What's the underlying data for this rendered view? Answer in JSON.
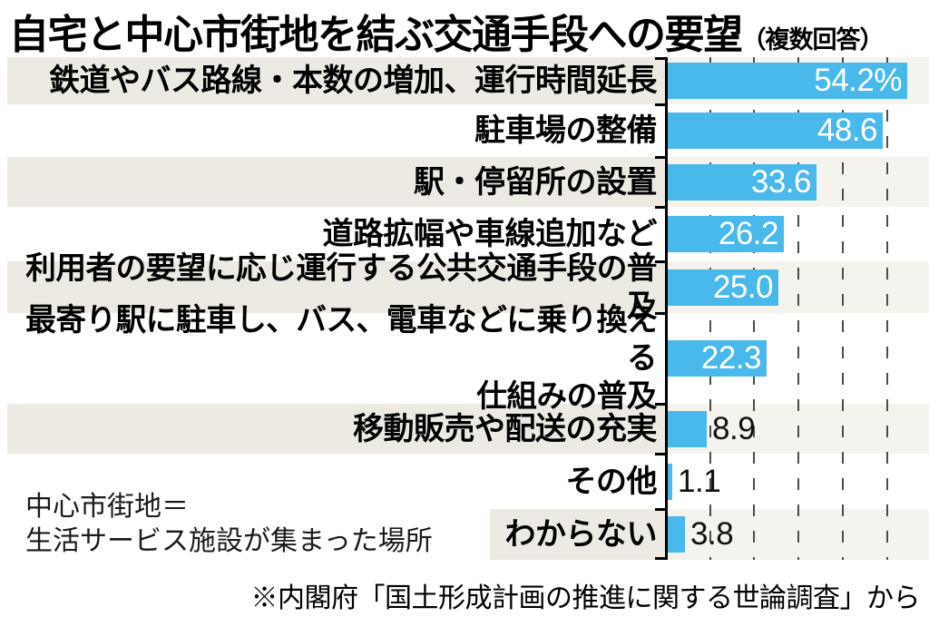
{
  "title": {
    "main": "自宅と中心市街地を結ぶ交通手段への要望",
    "suffix": "（複数回答）"
  },
  "note": {
    "line1": "中心市街地＝",
    "line2": "生活サービス施設が集まった場所"
  },
  "source": "※内閣府「国土形成計画の推進に関する世論調査」から",
  "colors": {
    "bar": "#49b8eb",
    "row_stripe": "#edeae4",
    "row_stripe_chart": "#f5f3ee",
    "axis": "#000000",
    "gridline": "#4c4c4c",
    "value_inside": "#ffffff",
    "value_outside": "#111111"
  },
  "chart_data": {
    "type": "bar",
    "orientation": "horizontal",
    "unit": "%",
    "title": "自宅と中心市街地を結ぶ交通手段への要望（複数回答）",
    "categories": [
      "鉄道やバス路線・本数の増加、運行時間延長",
      "駐車場の整備",
      "駅・停留所の設置",
      "道路拡幅や車線追加など",
      "利用者の要望に応じ運行する公共交通手段の普及",
      "最寄り駅に駐車し、バス、電車などに乗り換える\n仕組みの普及",
      "移動販売や配送の充実",
      "その他",
      "わからない"
    ],
    "values": [
      54.2,
      48.6,
      33.6,
      26.2,
      25.0,
      22.3,
      8.9,
      1.1,
      3.8
    ],
    "value_labels": [
      "54.2%",
      "48.6",
      "33.6",
      "26.2",
      "25.0",
      "22.3",
      "8.9",
      "1.1",
      "3.8"
    ],
    "xlim": [
      0,
      60
    ],
    "gridline_interval": 10,
    "grid": "dashed-vertical",
    "legend": "none",
    "source": "※内閣府「国土形成計画の推進に関する世論調査」から",
    "annotation": "中心市街地＝生活サービス施設が集まった場所"
  }
}
